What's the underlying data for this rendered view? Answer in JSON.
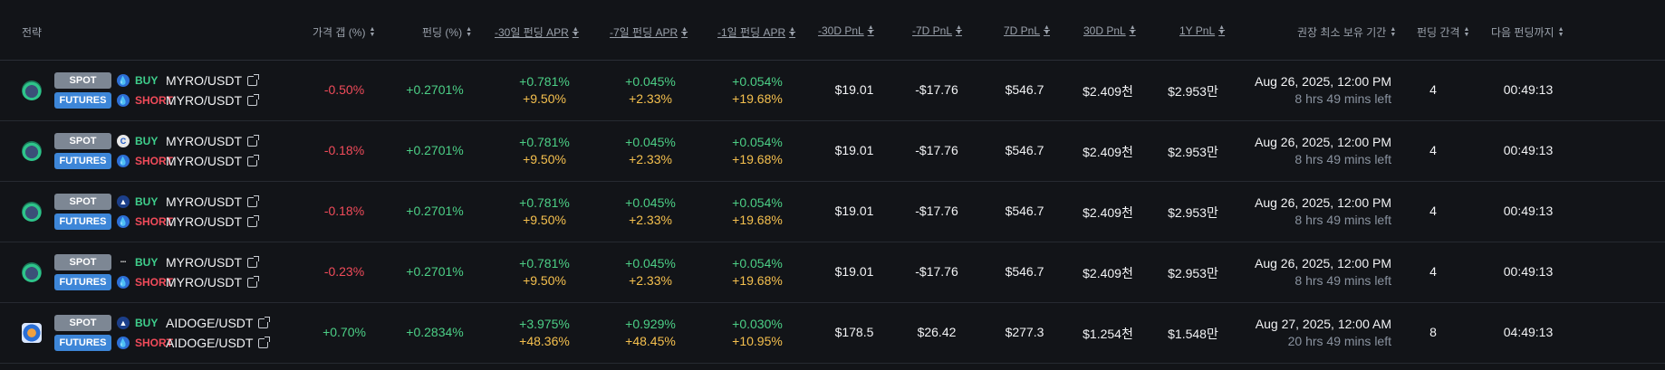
{
  "headers": {
    "strategy": "전략",
    "price_gap": "가격 갭 (%)",
    "funding": "펀딩 (%)",
    "apr_30d": "-30일 펀딩 APR",
    "apr_7d": "-7일 펀딩 APR",
    "apr_1d": "-1일 펀딩 APR",
    "pnl_m30d": "-30D PnL",
    "pnl_m7d": "-7D PnL",
    "pnl_7d": "7D PnL",
    "pnl_30d": "30D PnL",
    "pnl_1y": "1Y PnL",
    "hold": "권장 최소 보유 기간",
    "interval": "펀딩 간격",
    "next": "다음 펀딩까지"
  },
  "rows": [
    {
      "coin_icon": "myro-coin-icon",
      "spot": {
        "badge": "SPOT",
        "exchange_icon": "drop-exchange-icon",
        "side": "BUY",
        "pair": "MYRO/USDT"
      },
      "futures": {
        "badge": "FUTURES",
        "exchange_icon": "drop-exchange-icon",
        "side": "SHORT",
        "pair": "MYRO/USDT"
      },
      "price_gap": "-0.50%",
      "funding": "+0.2701%",
      "apr_30d": {
        "top": "+0.781%",
        "bottom": "+9.50%"
      },
      "apr_7d": {
        "top": "+0.045%",
        "bottom": "+2.33%"
      },
      "apr_1d": {
        "top": "+0.054%",
        "bottom": "+19.68%"
      },
      "pnl_m30d": "$19.01",
      "pnl_m7d": "-$17.76",
      "pnl_7d": "$546.7",
      "pnl_30d": "$2.409천",
      "pnl_1y": "$2.953만",
      "hold_date": "Aug 26, 2025, 12:00 PM",
      "hold_left": "8 hrs 49 mins left",
      "interval": "4",
      "next": "00:49:13"
    },
    {
      "coin_icon": "myro-coin-icon",
      "spot": {
        "badge": "SPOT",
        "exchange_icon": "c-exchange-icon",
        "side": "BUY",
        "pair": "MYRO/USDT"
      },
      "futures": {
        "badge": "FUTURES",
        "exchange_icon": "drop-exchange-icon",
        "side": "SHORT",
        "pair": "MYRO/USDT"
      },
      "price_gap": "-0.18%",
      "funding": "+0.2701%",
      "apr_30d": {
        "top": "+0.781%",
        "bottom": "+9.50%"
      },
      "apr_7d": {
        "top": "+0.045%",
        "bottom": "+2.33%"
      },
      "apr_1d": {
        "top": "+0.054%",
        "bottom": "+19.68%"
      },
      "pnl_m30d": "$19.01",
      "pnl_m7d": "-$17.76",
      "pnl_7d": "$546.7",
      "pnl_30d": "$2.409천",
      "pnl_1y": "$2.953만",
      "hold_date": "Aug 26, 2025, 12:00 PM",
      "hold_left": "8 hrs 49 mins left",
      "interval": "4",
      "next": "00:49:13"
    },
    {
      "coin_icon": "myro-coin-icon",
      "spot": {
        "badge": "SPOT",
        "exchange_icon": "mountain-exchange-icon",
        "side": "BUY",
        "pair": "MYRO/USDT"
      },
      "futures": {
        "badge": "FUTURES",
        "exchange_icon": "drop-exchange-icon",
        "side": "SHORT",
        "pair": "MYRO/USDT"
      },
      "price_gap": "-0.18%",
      "funding": "+0.2701%",
      "apr_30d": {
        "top": "+0.781%",
        "bottom": "+9.50%"
      },
      "apr_7d": {
        "top": "+0.045%",
        "bottom": "+2.33%"
      },
      "apr_1d": {
        "top": "+0.054%",
        "bottom": "+19.68%"
      },
      "pnl_m30d": "$19.01",
      "pnl_m7d": "-$17.76",
      "pnl_7d": "$546.7",
      "pnl_30d": "$2.409천",
      "pnl_1y": "$2.953만",
      "hold_date": "Aug 26, 2025, 12:00 PM",
      "hold_left": "8 hrs 49 mins left",
      "interval": "4",
      "next": "00:49:13"
    },
    {
      "coin_icon": "myro-coin-icon",
      "spot": {
        "badge": "SPOT",
        "exchange_icon": "text-exchange-icon",
        "side": "BUY",
        "pair": "MYRO/USDT"
      },
      "futures": {
        "badge": "FUTURES",
        "exchange_icon": "drop-exchange-icon",
        "side": "SHORT",
        "pair": "MYRO/USDT"
      },
      "price_gap": "-0.23%",
      "funding": "+0.2701%",
      "apr_30d": {
        "top": "+0.781%",
        "bottom": "+9.50%"
      },
      "apr_7d": {
        "top": "+0.045%",
        "bottom": "+2.33%"
      },
      "apr_1d": {
        "top": "+0.054%",
        "bottom": "+19.68%"
      },
      "pnl_m30d": "$19.01",
      "pnl_m7d": "-$17.76",
      "pnl_7d": "$546.7",
      "pnl_30d": "$2.409천",
      "pnl_1y": "$2.953만",
      "hold_date": "Aug 26, 2025, 12:00 PM",
      "hold_left": "8 hrs 49 mins left",
      "interval": "4",
      "next": "00:49:13"
    },
    {
      "coin_icon": "aidoge-coin-icon",
      "spot": {
        "badge": "SPOT",
        "exchange_icon": "mountain-exchange-icon",
        "side": "BUY",
        "pair": "AIDOGE/USDT"
      },
      "futures": {
        "badge": "FUTURES",
        "exchange_icon": "drop-exchange-icon",
        "side": "SHORT",
        "pair": "AIDOGE/USDT"
      },
      "price_gap": "+0.70%",
      "funding": "+0.2834%",
      "apr_30d": {
        "top": "+3.975%",
        "bottom": "+48.36%"
      },
      "apr_7d": {
        "top": "+0.929%",
        "bottom": "+48.45%"
      },
      "apr_1d": {
        "top": "+0.030%",
        "bottom": "+10.95%"
      },
      "pnl_m30d": "$178.5",
      "pnl_m7d": "$26.42",
      "pnl_7d": "$277.3",
      "pnl_30d": "$1.254천",
      "pnl_1y": "$1.548만",
      "hold_date": "Aug 27, 2025, 12:00 AM",
      "hold_left": "20 hrs 49 mins left",
      "interval": "8",
      "next": "04:49:13"
    }
  ]
}
